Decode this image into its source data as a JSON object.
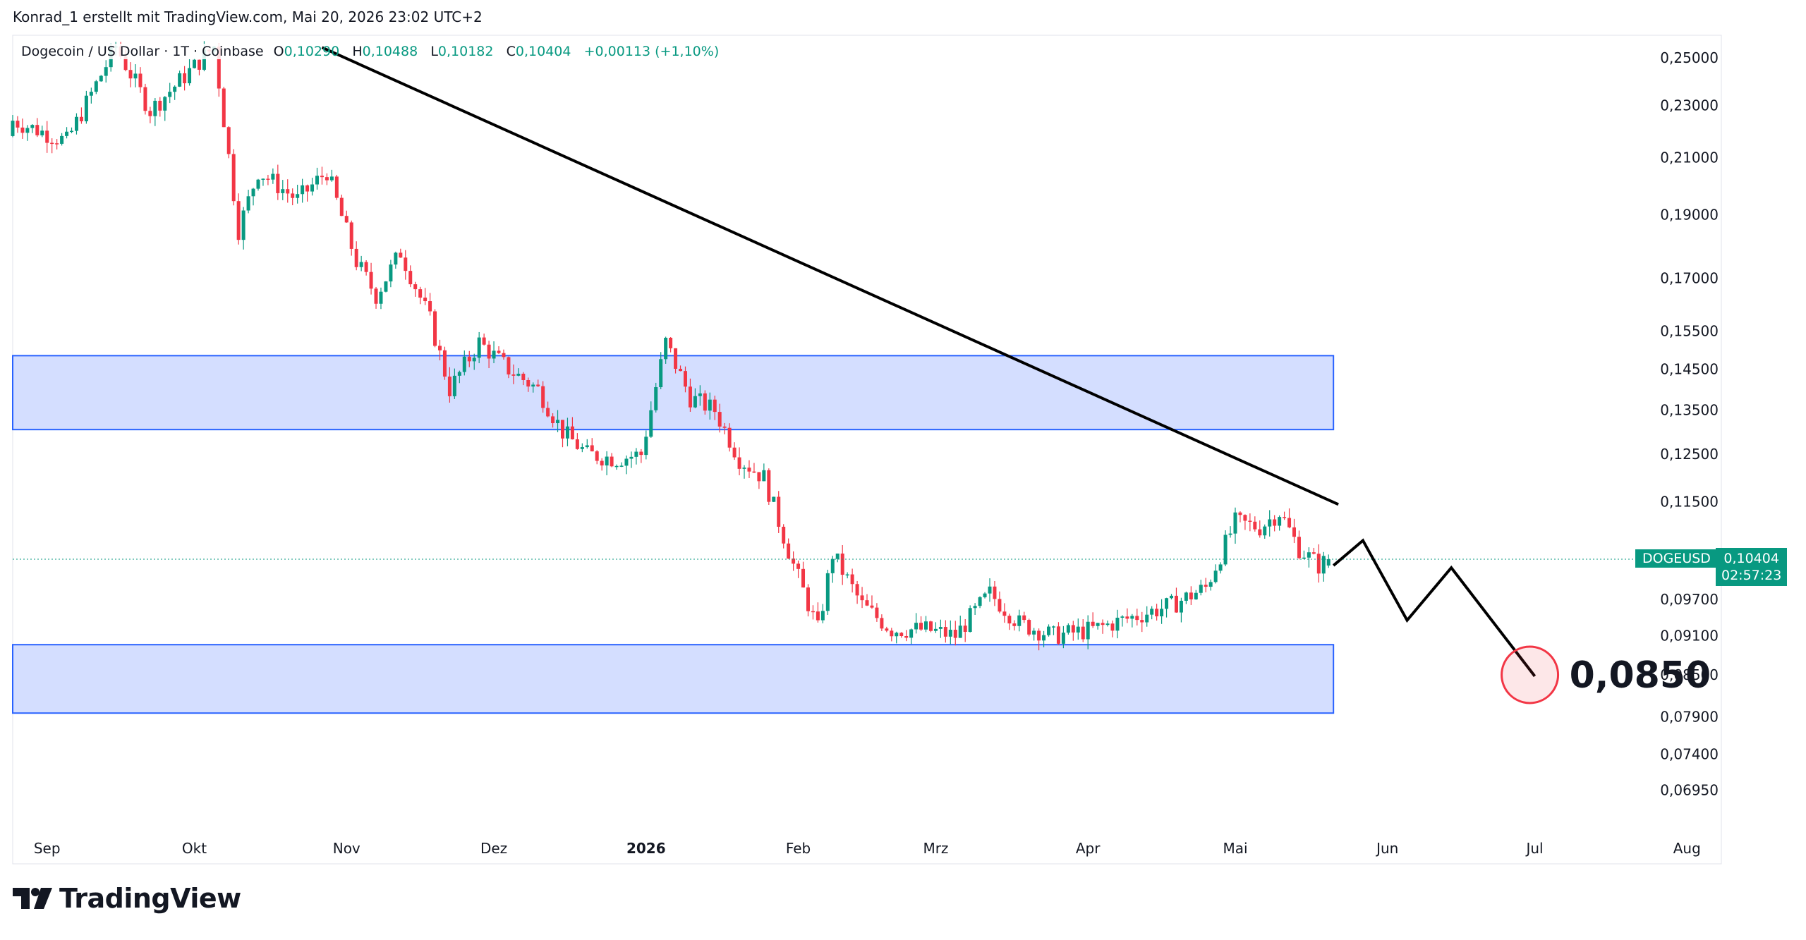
{
  "attribution": "Konrad_1 erstellt mit TradingView.com, Mai 20, 2026 23:02 UTC+2",
  "brand": {
    "name": "TradingView",
    "logo_icon": "tradingview-logo-icon"
  },
  "legend": {
    "symbol": "Dogecoin / US Dollar · 1T · Coinbase",
    "open_label": "O",
    "open": "0,10290",
    "high_label": "H",
    "high": "0,10488",
    "low_label": "L",
    "low": "0,10182",
    "close_label": "C",
    "close": "0,10404",
    "change": "+0,00113 (+1,10%)"
  },
  "price_badge": {
    "ticker": "DOGEUSD",
    "price": "0,10404",
    "countdown": "02:57:23"
  },
  "colors": {
    "up": "#089981",
    "down": "#f23645",
    "zone_fill": "#d4deff",
    "zone_stroke": "#2962ff",
    "line": "#000000",
    "target": "#f23645"
  },
  "chart_data": {
    "type": "candlestick",
    "x_tick_labels": [
      "Sep",
      "Okt",
      "Nov",
      "Dez",
      "2026",
      "Feb",
      "Mrz",
      "Apr",
      "Mai",
      "Jun",
      "Jul",
      "Aug"
    ],
    "x_ticks": [
      "2025-09-01",
      "2025-10-01",
      "2025-11-01",
      "2025-12-01",
      "2026-01-01",
      "2026-02-01",
      "2026-03-01",
      "2026-04-01",
      "2026-05-01",
      "2026-06-01",
      "2026-07-01",
      "2026-08-01"
    ],
    "y_tick_labels": [
      "0,25000",
      "0,23000",
      "0,21000",
      "0,19000",
      "0,17000",
      "0,15500",
      "0,14500",
      "0,13500",
      "0,12500",
      "0,11500",
      "0,09700",
      "0,09100",
      "0,08500",
      "0,07900",
      "0,07400",
      "0,06950"
    ],
    "y_ticks": [
      0.25,
      0.23,
      0.21,
      0.19,
      0.17,
      0.155,
      0.145,
      0.135,
      0.125,
      0.115,
      0.097,
      0.091,
      0.085,
      0.079,
      0.074,
      0.0695
    ],
    "y_scale": "log",
    "ylim": [
      0.067,
      0.26
    ],
    "xlim": [
      "2025-08-25",
      "2026-08-08"
    ],
    "grid": false,
    "ohlc_points": [
      [
        "2025-08-25",
        0.218,
        0.224
      ],
      [
        "2025-09-05",
        0.211,
        0.216
      ],
      [
        "2025-09-15",
        0.238,
        0.255
      ],
      [
        "2025-09-22",
        0.232,
        0.228
      ],
      [
        "2025-09-29",
        0.238,
        0.242
      ],
      [
        "2025-10-05",
        0.25,
        0.255
      ],
      [
        "2025-10-10",
        0.255,
        0.185
      ],
      [
        "2025-10-14",
        0.2,
        0.205
      ],
      [
        "2025-10-22",
        0.19,
        0.195
      ],
      [
        "2025-10-28",
        0.2,
        0.205
      ],
      [
        "2025-11-03",
        0.18,
        0.175
      ],
      [
        "2025-11-07",
        0.17,
        0.165
      ],
      [
        "2025-11-12",
        0.18,
        0.178
      ],
      [
        "2025-11-18",
        0.16,
        0.158
      ],
      [
        "2025-11-22",
        0.148,
        0.14
      ],
      [
        "2025-11-28",
        0.153,
        0.152
      ],
      [
        "2025-12-04",
        0.146,
        0.145
      ],
      [
        "2025-12-10",
        0.14,
        0.14
      ],
      [
        "2025-12-15",
        0.132,
        0.13
      ],
      [
        "2025-12-20",
        0.128,
        0.125
      ],
      [
        "2025-12-26",
        0.124,
        0.124
      ],
      [
        "2025-12-31",
        0.128,
        0.125
      ],
      [
        "2026-01-05",
        0.15,
        0.152
      ],
      [
        "2026-01-10",
        0.142,
        0.138
      ],
      [
        "2026-01-15",
        0.138,
        0.135
      ],
      [
        "2026-01-20",
        0.125,
        0.124
      ],
      [
        "2026-01-25",
        0.122,
        0.12
      ],
      [
        "2026-01-31",
        0.105,
        0.103
      ],
      [
        "2026-02-05",
        0.09,
        0.092
      ],
      [
        "2026-02-08",
        0.103,
        0.105
      ],
      [
        "2026-02-14",
        0.097,
        0.096
      ],
      [
        "2026-02-20",
        0.094,
        0.092
      ],
      [
        "2026-02-27",
        0.092,
        0.092
      ],
      [
        "2026-03-05",
        0.09,
        0.091
      ],
      [
        "2026-03-12",
        0.096,
        0.098
      ],
      [
        "2026-03-18",
        0.094,
        0.093
      ],
      [
        "2026-03-25",
        0.09,
        0.091
      ],
      [
        "2026-04-02",
        0.091,
        0.092
      ],
      [
        "2026-04-10",
        0.093,
        0.094
      ],
      [
        "2026-04-18",
        0.095,
        0.096
      ],
      [
        "2026-04-25",
        0.098,
        0.099
      ],
      [
        "2026-05-01",
        0.108,
        0.111
      ],
      [
        "2026-05-06",
        0.112,
        0.11
      ],
      [
        "2026-05-10",
        0.111,
        0.113
      ],
      [
        "2026-05-14",
        0.109,
        0.106
      ],
      [
        "2026-05-18",
        0.103,
        0.1029
      ],
      [
        "2026-05-20",
        0.1029,
        0.10404
      ]
    ],
    "ohlc_columns": [
      "date",
      "open_approx",
      "close_approx"
    ],
    "zones": [
      {
        "from": "2025-08-25",
        "to": "2026-05-21",
        "low": 0.1305,
        "high": 0.1485
      },
      {
        "from": "2025-08-25",
        "to": "2026-05-21",
        "low": 0.0795,
        "high": 0.0896
      }
    ],
    "trendline": [
      [
        "2025-10-27",
        0.2545
      ],
      [
        "2026-05-22",
        0.1145
      ]
    ],
    "projection": [
      [
        "2026-05-21",
        0.1029
      ],
      [
        "2026-05-27",
        0.1075
      ],
      [
        "2026-06-05",
        0.0935
      ],
      [
        "2026-06-14",
        0.1025
      ],
      [
        "2026-07-01",
        0.0848
      ]
    ],
    "target": {
      "date": "2026-06-30",
      "value": 0.085,
      "label": "0,0850"
    },
    "current_price_line": 0.10404
  }
}
